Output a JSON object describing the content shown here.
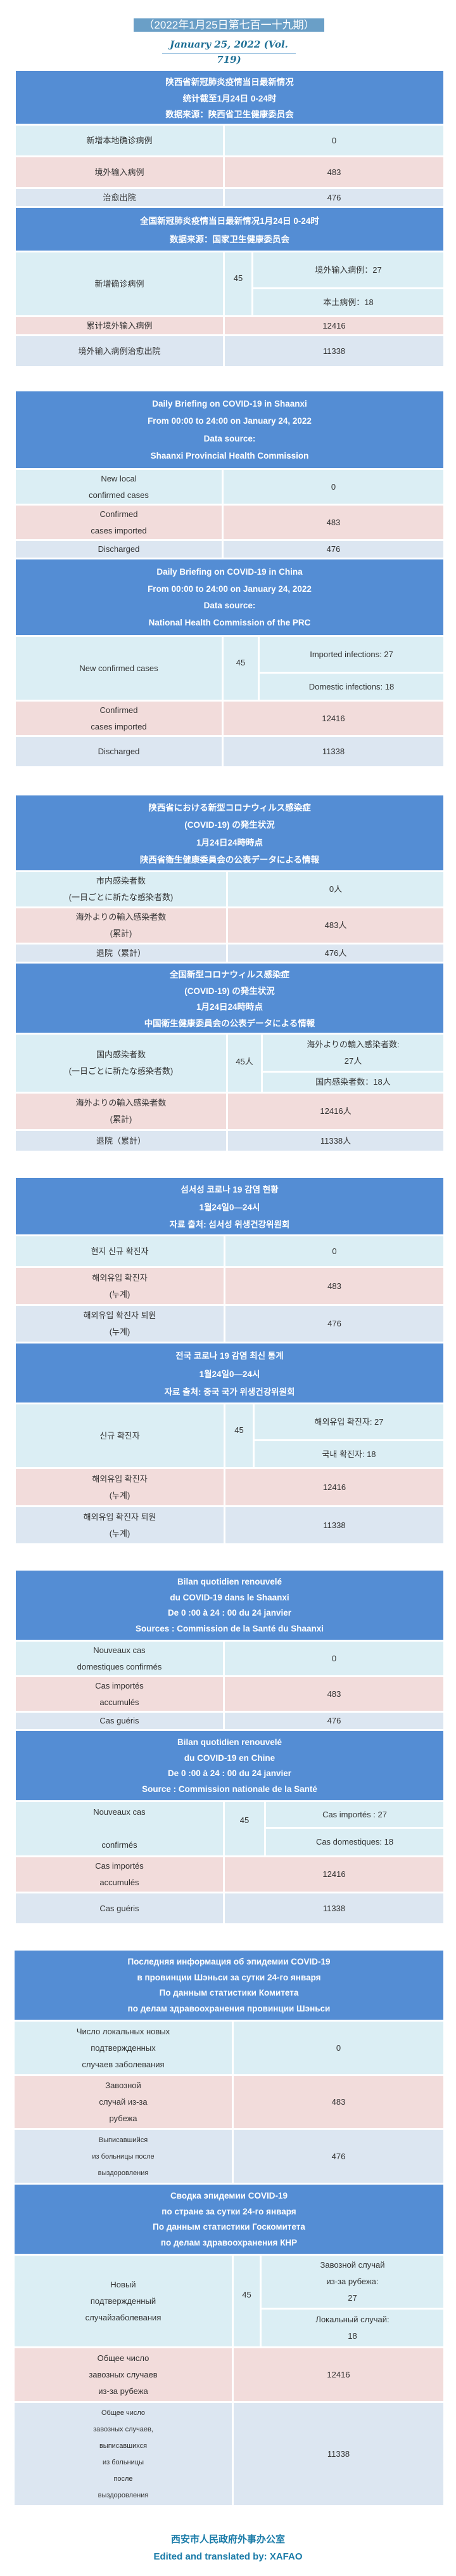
{
  "issue_title": "（2022年1月25日第七百一十九期）",
  "issue_date": "January 25, 2022 (Vol. 719)",
  "colors": {
    "header": "#548dd4",
    "row_new": "#dbeef4",
    "row_imported": "#f2dcdb",
    "row_discharged": "#dce6f1",
    "footer": "#1a7ba8"
  },
  "sections": [
    {
      "lang": "zh",
      "province": {
        "header": "陕西省新冠肺炎疫情当日最新情况\n统计截至1月24日 0-24时\n数据来源：陕西省卫生健康委员会",
        "rows": [
          {
            "label": "新增本地确诊病例",
            "value": "0"
          },
          {
            "label": "境外输入病例",
            "value": "483"
          },
          {
            "label": "治愈出院",
            "value": "476"
          }
        ]
      },
      "national": {
        "header": "全国新冠肺炎疫情当日最新情况1月24日 0-24时\n数据来源：国家卫生健康委员会",
        "new_label": "新增确诊病例",
        "new_total": "45",
        "imported": "境外输入病例：27",
        "domestic": "本土病例：18",
        "rows": [
          {
            "label": "累计境外输入病例",
            "value": "12416"
          },
          {
            "label": "境外输入病例治愈出院",
            "value": "11338"
          }
        ]
      }
    },
    {
      "lang": "en",
      "province": {
        "header": "Daily Briefing on COVID-19 in Shaanxi\nFrom 00:00 to 24:00 on January 24, 2022\nData source:\nShaanxi Provincial Health Commission",
        "rows": [
          {
            "label": "New local\nconfirmed cases",
            "value": "0"
          },
          {
            "label": "Confirmed\ncases imported",
            "value": "483"
          },
          {
            "label": "Discharged",
            "value": "476"
          }
        ]
      },
      "national": {
        "header": "Daily Briefing on COVID-19 in China\nFrom 00:00 to 24:00 on  January 24,  2022\nData source:\nNational Health Commission of the PRC",
        "new_label": "New confirmed cases",
        "new_total": "45",
        "imported": "Imported infections: 27",
        "domestic": "Domestic infections: 18",
        "rows": [
          {
            "label": "Confirmed\ncases imported",
            "value": "12416"
          },
          {
            "label": "Discharged",
            "value": "11338"
          }
        ]
      }
    },
    {
      "lang": "ja",
      "province": {
        "header": "陕西省における新型コロナウィルス感染症\n(COVID-19) の発生状況\n1月24日24時時点\n陕西省衛生健康委員会の公表データによる情報",
        "rows": [
          {
            "label": "市内感染者数\n(一日ごとに新たな感染者数)",
            "value": "0人"
          },
          {
            "label": "海外よりの輸入感染者数\n(累計)",
            "value": "483人"
          },
          {
            "label": "退院（累計）",
            "value": "476人"
          }
        ]
      },
      "national": {
        "header": "全国新型コロナウィルス感染症\n(COVID-19) の発生状況\n1月24日24時時点\n中国衛生健康委員会の公表データによる情報",
        "new_label": "国内感染者数\n(一日ごとに新たな感染者数)",
        "new_total": "45人",
        "imported": "海外よりの輸入感染者数:\n27人",
        "domestic": "国内感染者数：18人",
        "rows": [
          {
            "label": "海外よりの輸入感染者数\n(累計)",
            "value": "12416人"
          },
          {
            "label": "退院（累計）",
            "value": "11338人"
          }
        ]
      }
    },
    {
      "lang": "ko",
      "province": {
        "header": "섬서성 코로나 19 감염 현황\n1월24일0—24시\n자료 출처: 섬서성 위생건강위원회",
        "rows": [
          {
            "label": "현지 신규 확진자",
            "value": "0"
          },
          {
            "label": "해외유입 확진자\n(누계)",
            "value": "483"
          },
          {
            "label": "해외유입 확진자 퇴원\n(누계)",
            "value": "476"
          }
        ]
      },
      "national": {
        "header": "전국 코로나 19 감염 최신 통계\n1월24일0—24시\n자료 출처: 중국 국가 위생건강위원회",
        "new_label": "신규 확진자",
        "new_total": "45",
        "imported": "해외유입 확진자:  27",
        "domestic": "국내 확진자:  18",
        "rows": [
          {
            "label": "해외유입 확진자\n(누계)",
            "value": "12416"
          },
          {
            "label": "해외유입 확진자 퇴원\n(누계)",
            "value": "11338"
          }
        ]
      }
    },
    {
      "lang": "fr",
      "province": {
        "header": "Bilan quotidien renouvelé\ndu COVID-19 dans le Shaanxi\nDe 0 :00 à 24 : 00 du 24 janvier\nSources : Commission de la Santé du Shaanxi",
        "rows": [
          {
            "label": "Nouveaux cas\ndomestiques confirmés",
            "value": "0"
          },
          {
            "label": "Cas importés\naccumulés",
            "value": "483"
          },
          {
            "label": "Cas guéris",
            "value": "476"
          }
        ]
      },
      "national": {
        "header": "Bilan quotidien renouvelé\ndu COVID-19 en Chine\nDe 0 :00 à 24 : 00 du 24 janvier\nSource : Commission nationale de la Santé",
        "new_label": "Nouveaux cas\n\nconfirmés",
        "new_total": "45",
        "imported": "Cas importés : 27",
        "domestic": "Cas domestiques: 18",
        "rows": [
          {
            "label": "Cas importés\naccumulés",
            "value": "12416"
          },
          {
            "label": "Cas guéris",
            "value": "11338"
          }
        ]
      }
    },
    {
      "lang": "ru",
      "province": {
        "header": "Последняя информация об эпидемии COVID-19\nв провинции Шэньси за сутки 24-го января\nПо данным статистики Комитета\nпо делам здравоохранения провинции Шэньси",
        "rows": [
          {
            "label": "Число локальных новых\nподтвержденных\nслучаев заболевания",
            "value": "0"
          },
          {
            "label": "Завозной\nслучай из-за\nрубежа",
            "value": "483"
          },
          {
            "label": "Выписавшийся\nиз больницы после\nвыздоровления",
            "value": "476"
          }
        ]
      },
      "national": {
        "header": "Сводка эпидемии COVID-19\nпо стране за сутки 24-го января\nПо данным статистики Госкомитета\nпо делам здравоохранения КНР",
        "new_label": "Новый\nподтвержденный\nслучайзаболевания",
        "new_total": "45",
        "imported": "Завозной случай\nиз-за рубежа:\n27",
        "domestic": "Локальный случай:\n18",
        "rows": [
          {
            "label": "Общее число\nзавозных случаев\nиз-за рубежа",
            "value": "12416"
          },
          {
            "label": "Общее число\nзавозных случаев,\nвыписавшихся\nиз больницы\nпосле\nвыздоровления",
            "value": "11338"
          }
        ]
      }
    }
  ],
  "footer": {
    "org": "西安市人民政府外事办公室",
    "credit": "Edited and translated by: XAFAO"
  }
}
